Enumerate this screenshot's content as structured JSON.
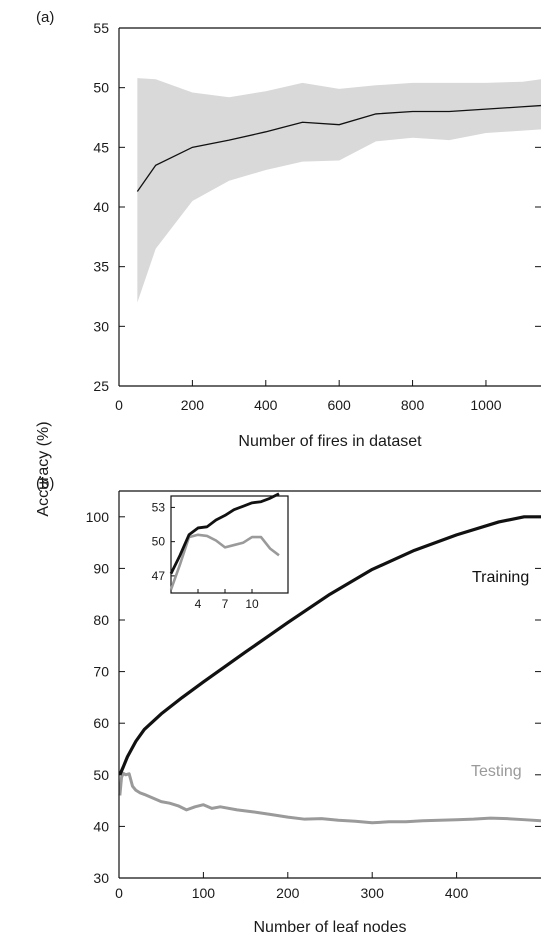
{
  "figure": {
    "shared_ylabel": "Accuracy (%)"
  },
  "chart_data": [
    {
      "panel": "a",
      "panel_label": "(a)",
      "type": "line",
      "xlabel": "Number of fires in dataset",
      "ylabel": "Accuracy (%)",
      "xlim": [
        0,
        1150
      ],
      "ylim": [
        25,
        55
      ],
      "xticks": [
        0,
        200,
        400,
        600,
        800,
        1000
      ],
      "yticks": [
        25,
        30,
        35,
        40,
        45,
        50,
        55
      ],
      "grid": false,
      "series": [
        {
          "role": "mean",
          "color": "#111111",
          "x": [
            50,
            100,
            200,
            300,
            400,
            500,
            600,
            700,
            800,
            900,
            1000,
            1100,
            1150
          ],
          "y": [
            41.3,
            43.5,
            45.0,
            45.6,
            46.3,
            47.1,
            46.9,
            47.8,
            48.0,
            48.0,
            48.2,
            48.4,
            48.5
          ]
        },
        {
          "role": "range",
          "color": "#d9d9d9",
          "x": [
            50,
            100,
            200,
            300,
            400,
            500,
            600,
            700,
            800,
            900,
            1000,
            1100,
            1150
          ],
          "upper": [
            50.8,
            50.7,
            49.6,
            49.2,
            49.7,
            50.4,
            49.9,
            50.2,
            50.4,
            50.4,
            50.4,
            50.5,
            50.7
          ],
          "lower": [
            32.0,
            36.5,
            40.5,
            42.2,
            43.1,
            43.8,
            43.9,
            45.5,
            45.8,
            45.6,
            46.2,
            46.4,
            46.5
          ]
        }
      ]
    },
    {
      "panel": "b",
      "panel_label": "(b)",
      "type": "line",
      "xlabel": "Number of leaf nodes",
      "ylabel": "Accuracy (%)",
      "xlim": [
        0,
        500
      ],
      "ylim": [
        30,
        105
      ],
      "xticks": [
        0,
        100,
        200,
        300,
        400
      ],
      "yticks": [
        30,
        40,
        50,
        60,
        70,
        80,
        90,
        100
      ],
      "grid": false,
      "series": [
        {
          "name": "Training",
          "color": "#111111",
          "x": [
            1,
            5,
            10,
            20,
            30,
            50,
            75,
            100,
            150,
            200,
            250,
            300,
            350,
            400,
            450,
            480,
            500
          ],
          "y": [
            50.0,
            51.5,
            53.5,
            56.5,
            58.8,
            61.8,
            65.0,
            68.0,
            73.8,
            79.5,
            85.0,
            89.8,
            93.5,
            96.5,
            99.0,
            100.0,
            100.0
          ]
        },
        {
          "name": "Testing",
          "color": "#9a9a9a",
          "x": [
            1,
            3,
            5,
            8,
            12,
            16,
            20,
            25,
            30,
            40,
            50,
            60,
            70,
            80,
            90,
            100,
            110,
            120,
            140,
            160,
            180,
            200,
            220,
            240,
            260,
            280,
            300,
            320,
            340,
            360,
            380,
            400,
            420,
            440,
            460,
            480,
            500
          ],
          "y": [
            46.0,
            49.5,
            50.3,
            50.0,
            50.2,
            47.8,
            47.0,
            46.5,
            46.2,
            45.5,
            44.8,
            44.5,
            44.0,
            43.2,
            43.8,
            44.2,
            43.5,
            43.8,
            43.2,
            42.8,
            42.3,
            41.8,
            41.4,
            41.5,
            41.2,
            41.0,
            40.7,
            40.9,
            40.9,
            41.1,
            41.2,
            41.3,
            41.4,
            41.6,
            41.5,
            41.3,
            41.1
          ]
        }
      ]
    },
    {
      "panel": "b-inset",
      "type": "line",
      "xlim": [
        1,
        14
      ],
      "ylim": [
        45.5,
        54
      ],
      "xticks": [
        4,
        7,
        10
      ],
      "yticks": [
        47,
        50,
        53
      ],
      "grid": false,
      "series": [
        {
          "name": "Training",
          "color": "#111111",
          "x": [
            1,
            2,
            3,
            4,
            5,
            6,
            7,
            8,
            9,
            10,
            11,
            12,
            13
          ],
          "y": [
            47.2,
            48.8,
            50.6,
            51.2,
            51.3,
            51.9,
            52.3,
            52.8,
            53.1,
            53.4,
            53.5,
            53.8,
            54.2
          ]
        },
        {
          "name": "Testing",
          "color": "#9a9a9a",
          "x": [
            1,
            2,
            3,
            4,
            5,
            6,
            7,
            8,
            9,
            10,
            11,
            12,
            13
          ],
          "y": [
            45.8,
            48.0,
            50.4,
            50.6,
            50.5,
            50.1,
            49.5,
            49.7,
            49.9,
            50.4,
            50.4,
            49.4,
            48.8
          ]
        }
      ]
    }
  ]
}
